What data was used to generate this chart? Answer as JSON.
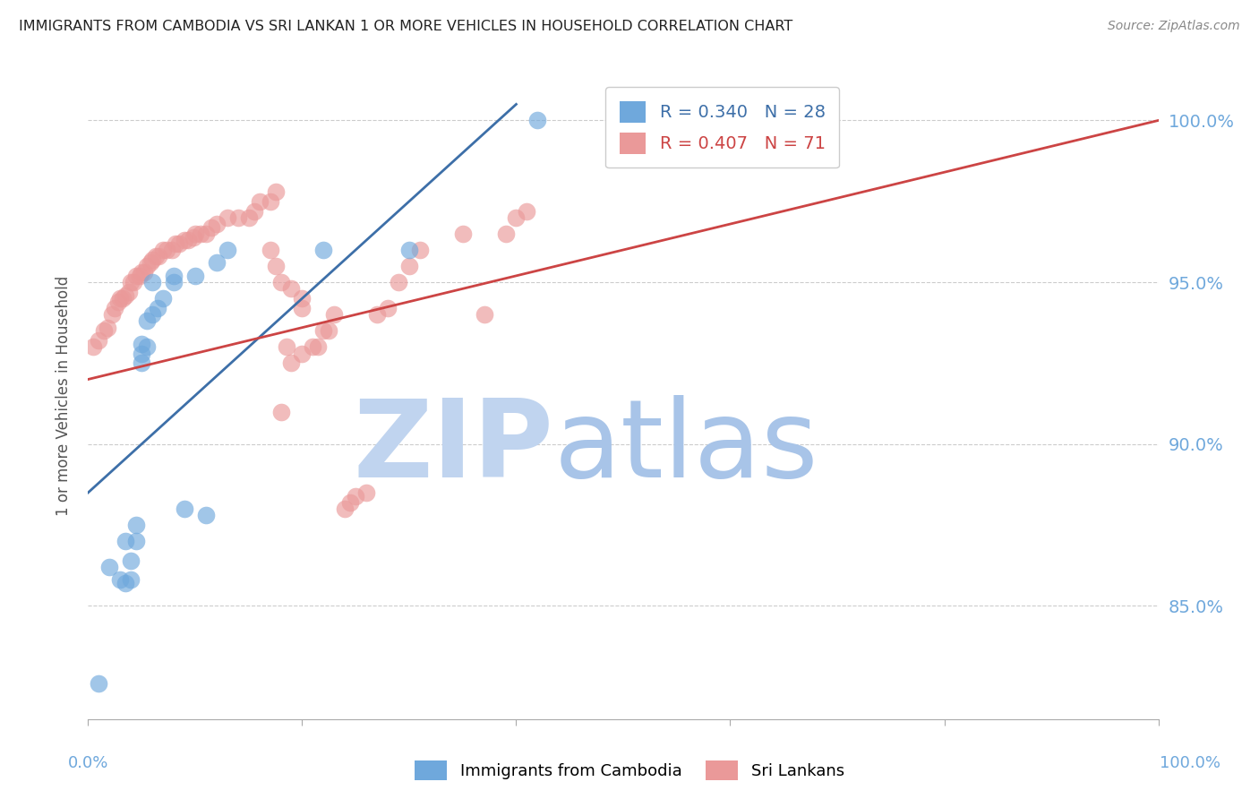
{
  "title": "IMMIGRANTS FROM CAMBODIA VS SRI LANKAN 1 OR MORE VEHICLES IN HOUSEHOLD CORRELATION CHART",
  "source": "Source: ZipAtlas.com",
  "ylabel": "1 or more Vehicles in Household",
  "ytick_labels": [
    "100.0%",
    "95.0%",
    "90.0%",
    "85.0%"
  ],
  "ytick_values": [
    1.0,
    0.95,
    0.9,
    0.85
  ],
  "xlim": [
    0.0,
    1.0
  ],
  "ylim": [
    0.815,
    1.015
  ],
  "legend_r_cambodia": "R = 0.340",
  "legend_n_cambodia": "N = 28",
  "legend_r_srilanka": "R = 0.407",
  "legend_n_srilanka": "N = 71",
  "color_cambodia": "#6fa8dc",
  "color_srilanka": "#ea9999",
  "color_trend_cambodia": "#3d6fa8",
  "color_trend_srilanka": "#cc4444",
  "color_axis_labels": "#6fa8dc",
  "watermark_color_zip": "#c0d4ef",
  "watermark_color_atlas": "#a8c4e8",
  "cambodia_x": [
    0.01,
    0.02,
    0.03,
    0.035,
    0.035,
    0.04,
    0.04,
    0.045,
    0.045,
    0.05,
    0.05,
    0.05,
    0.055,
    0.055,
    0.06,
    0.06,
    0.065,
    0.07,
    0.08,
    0.08,
    0.09,
    0.1,
    0.11,
    0.12,
    0.13,
    0.22,
    0.3,
    0.42
  ],
  "cambodia_y": [
    0.826,
    0.862,
    0.858,
    0.857,
    0.87,
    0.858,
    0.864,
    0.87,
    0.875,
    0.925,
    0.928,
    0.931,
    0.93,
    0.938,
    0.94,
    0.95,
    0.942,
    0.945,
    0.95,
    0.952,
    0.88,
    0.952,
    0.878,
    0.956,
    0.96,
    0.96,
    0.96,
    1.0
  ],
  "srilanka_x": [
    0.005,
    0.01,
    0.015,
    0.018,
    0.022,
    0.025,
    0.028,
    0.03,
    0.032,
    0.035,
    0.038,
    0.04,
    0.042,
    0.045,
    0.048,
    0.05,
    0.052,
    0.055,
    0.058,
    0.06,
    0.063,
    0.066,
    0.07,
    0.073,
    0.078,
    0.082,
    0.085,
    0.09,
    0.093,
    0.098,
    0.1,
    0.105,
    0.11,
    0.115,
    0.12,
    0.13,
    0.14,
    0.15,
    0.155,
    0.16,
    0.17,
    0.175,
    0.18,
    0.185,
    0.19,
    0.2,
    0.21,
    0.215,
    0.22,
    0.225,
    0.23,
    0.24,
    0.245,
    0.25,
    0.26,
    0.27,
    0.28,
    0.29,
    0.3,
    0.31,
    0.35,
    0.37,
    0.39,
    0.4,
    0.41,
    0.17,
    0.175,
    0.18,
    0.19,
    0.2,
    0.2
  ],
  "srilanka_y": [
    0.93,
    0.932,
    0.935,
    0.936,
    0.94,
    0.942,
    0.944,
    0.945,
    0.945,
    0.946,
    0.947,
    0.95,
    0.95,
    0.952,
    0.952,
    0.953,
    0.953,
    0.955,
    0.956,
    0.957,
    0.958,
    0.958,
    0.96,
    0.96,
    0.96,
    0.962,
    0.962,
    0.963,
    0.963,
    0.964,
    0.965,
    0.965,
    0.965,
    0.967,
    0.968,
    0.97,
    0.97,
    0.97,
    0.972,
    0.975,
    0.975,
    0.978,
    0.91,
    0.93,
    0.925,
    0.928,
    0.93,
    0.93,
    0.935,
    0.935,
    0.94,
    0.88,
    0.882,
    0.884,
    0.885,
    0.94,
    0.942,
    0.95,
    0.955,
    0.96,
    0.965,
    0.94,
    0.965,
    0.97,
    0.972,
    0.96,
    0.955,
    0.95,
    0.948,
    0.945,
    0.942
  ],
  "cambodia_trend_x": [
    0.0,
    0.4
  ],
  "srilanka_trend_x": [
    0.0,
    1.0
  ],
  "cambodia_trend_y_start": 0.885,
  "cambodia_trend_y_end": 1.005,
  "srilanka_trend_y_start": 0.92,
  "srilanka_trend_y_end": 1.0
}
